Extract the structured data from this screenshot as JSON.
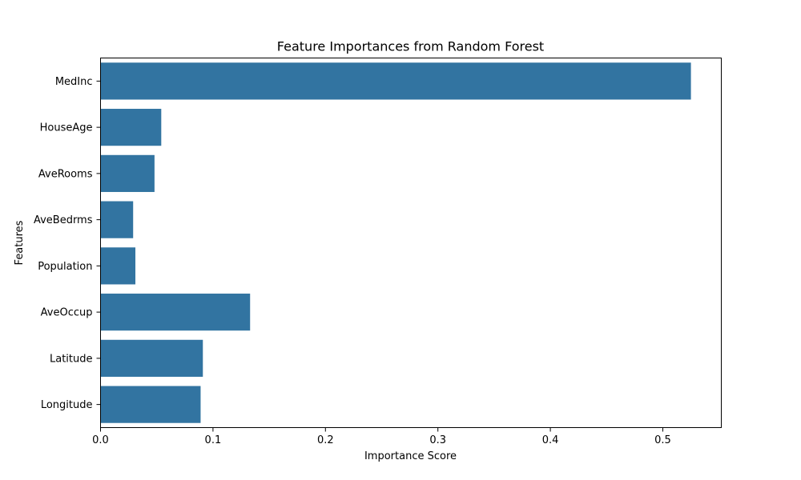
{
  "chart_data": {
    "type": "bar",
    "orientation": "horizontal",
    "title": "Feature Importances from Random Forest",
    "xlabel": "Importance Score",
    "ylabel": "Features",
    "categories": [
      "MedInc",
      "HouseAge",
      "AveRooms",
      "AveBedrms",
      "Population",
      "AveOccup",
      "Latitude",
      "Longitude"
    ],
    "values": [
      0.525,
      0.054,
      0.048,
      0.029,
      0.031,
      0.133,
      0.091,
      0.089
    ],
    "xlim": [
      0,
      0.552
    ],
    "xticks": [
      0.0,
      0.1,
      0.2,
      0.3,
      0.4,
      0.5
    ],
    "xtick_labels": [
      "0.0",
      "0.1",
      "0.2",
      "0.3",
      "0.4",
      "0.5"
    ],
    "bar_color": "#3274a1",
    "grid": false,
    "legend": "none"
  }
}
